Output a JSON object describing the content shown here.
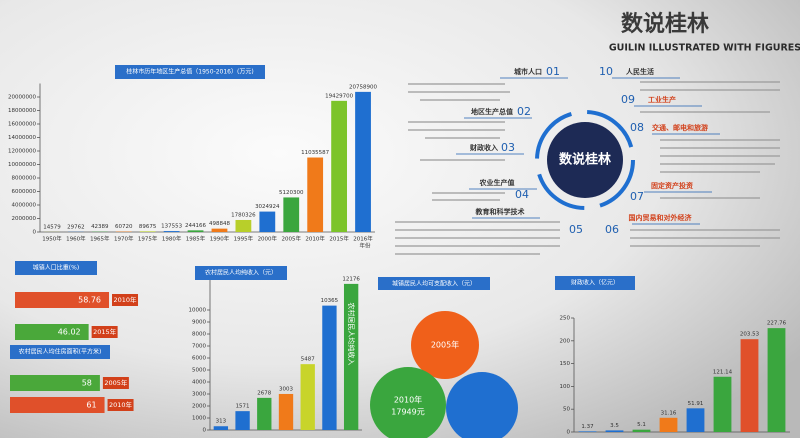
{
  "chart_data": [
    {
      "type": "bar",
      "title": "桂林市历年地区生产总值（1950-2016）(万元)",
      "xlabel": "年份",
      "categories": [
        "1950年",
        "1960年",
        "1965年",
        "1970年",
        "1975年",
        "1980年",
        "1985年",
        "1990年",
        "1995年",
        "2000年",
        "2005年",
        "2010年",
        "2015年",
        "2016年"
      ],
      "values": [
        14579,
        29762,
        42389,
        60720,
        89675,
        137553,
        244166,
        498848,
        1780326,
        3024924,
        5120300,
        11035587,
        19429700,
        20758900
      ],
      "colors": [
        "#b8cf2a",
        "#1f6fd0",
        "#3aa63e",
        "#f07a1a",
        "#b8cf2a",
        "#1f6fd0",
        "#3aa63e",
        "#f07a1a",
        "#b8cf2a",
        "#1f6fd0",
        "#3aa63e",
        "#f07a1a",
        "#7cc42a",
        "#1f6fd0"
      ],
      "ylim": [
        0,
        22000000
      ],
      "yticks": [
        0,
        2000000,
        4000000,
        6000000,
        8000000,
        10000000,
        12000000,
        14000000,
        16000000,
        18000000,
        20000000
      ]
    },
    {
      "type": "bar",
      "title": "农村居民人均纯收入（元）",
      "annotation": "农村居民人均纯收入",
      "categories": [
        null,
        null,
        null,
        null,
        null,
        null,
        null
      ],
      "values": [
        313,
        1571,
        2678,
        3003,
        5487,
        10365,
        12176
      ],
      "colors": [
        "#1f6fd0",
        "#1f6fd0",
        "#3aa63e",
        "#f07a1a",
        "#c8d42a",
        "#1f6fd0",
        "#3aa63e"
      ],
      "ylim": [
        0,
        12500
      ],
      "yticks": [
        0,
        1000,
        2000,
        3000,
        4000,
        5000,
        6000,
        7000,
        8000,
        9000,
        10000
      ]
    },
    {
      "type": "bar",
      "title": "财政收入（亿元）",
      "categories": [
        null,
        null,
        null,
        null,
        null,
        null,
        null,
        null
      ],
      "values": [
        1.37,
        3.5,
        5.1,
        31.16,
        51.91,
        121.14,
        203.53,
        227.76
      ],
      "colors": [
        "#1f6fd0",
        "#1f6fd0",
        "#3aa63e",
        "#f07a1a",
        "#1f6fd0",
        "#3aa63e",
        "#e0502a",
        "#3aa63e"
      ],
      "ylim": [
        0,
        250
      ],
      "yticks": [
        0,
        50,
        100,
        150,
        200,
        250
      ]
    },
    {
      "type": "hbar",
      "title": "城镇人口比重(%)",
      "categories": [
        "2010年",
        "2015年"
      ],
      "values": [
        58.76,
        46.02
      ],
      "colors": [
        "#e0502a",
        "#4aa83a"
      ],
      "xlim": [
        0,
        100
      ]
    },
    {
      "type": "hbar",
      "title": "农村居民人均住房面积(平方米)",
      "categories": [
        "2005年",
        "2010年"
      ],
      "values": [
        58,
        61
      ],
      "colors": [
        "#4aa83a",
        "#e0502a"
      ],
      "xlim": [
        0,
        100
      ]
    }
  ],
  "circle_panel": {
    "title": "城镇居民人均可支配收入（元）",
    "labels": [
      "2005年",
      "2010年",
      "17949元"
    ]
  },
  "infographic": {
    "title": "数说桂林",
    "subtitle": "GUILIN ILLUSTRATED WITH FIGURES",
    "center": "数说桂林",
    "items": [
      {
        "number": "01",
        "label": "城市人口"
      },
      {
        "number": "02",
        "label": "地区生产总值"
      },
      {
        "number": "03",
        "label": "财政收入"
      },
      {
        "number": "04",
        "label": "农业生产值"
      },
      {
        "number": "05",
        "label": "教育和科学技术"
      },
      {
        "number": "06",
        "label": "国内贸易和对外经济"
      },
      {
        "number": "07",
        "label": "固定资产投资"
      },
      {
        "number": "08",
        "label": "交通、邮电和旅游"
      },
      {
        "number": "09",
        "label": "工业生产"
      },
      {
        "number": "10",
        "label": "人民生活"
      }
    ]
  }
}
